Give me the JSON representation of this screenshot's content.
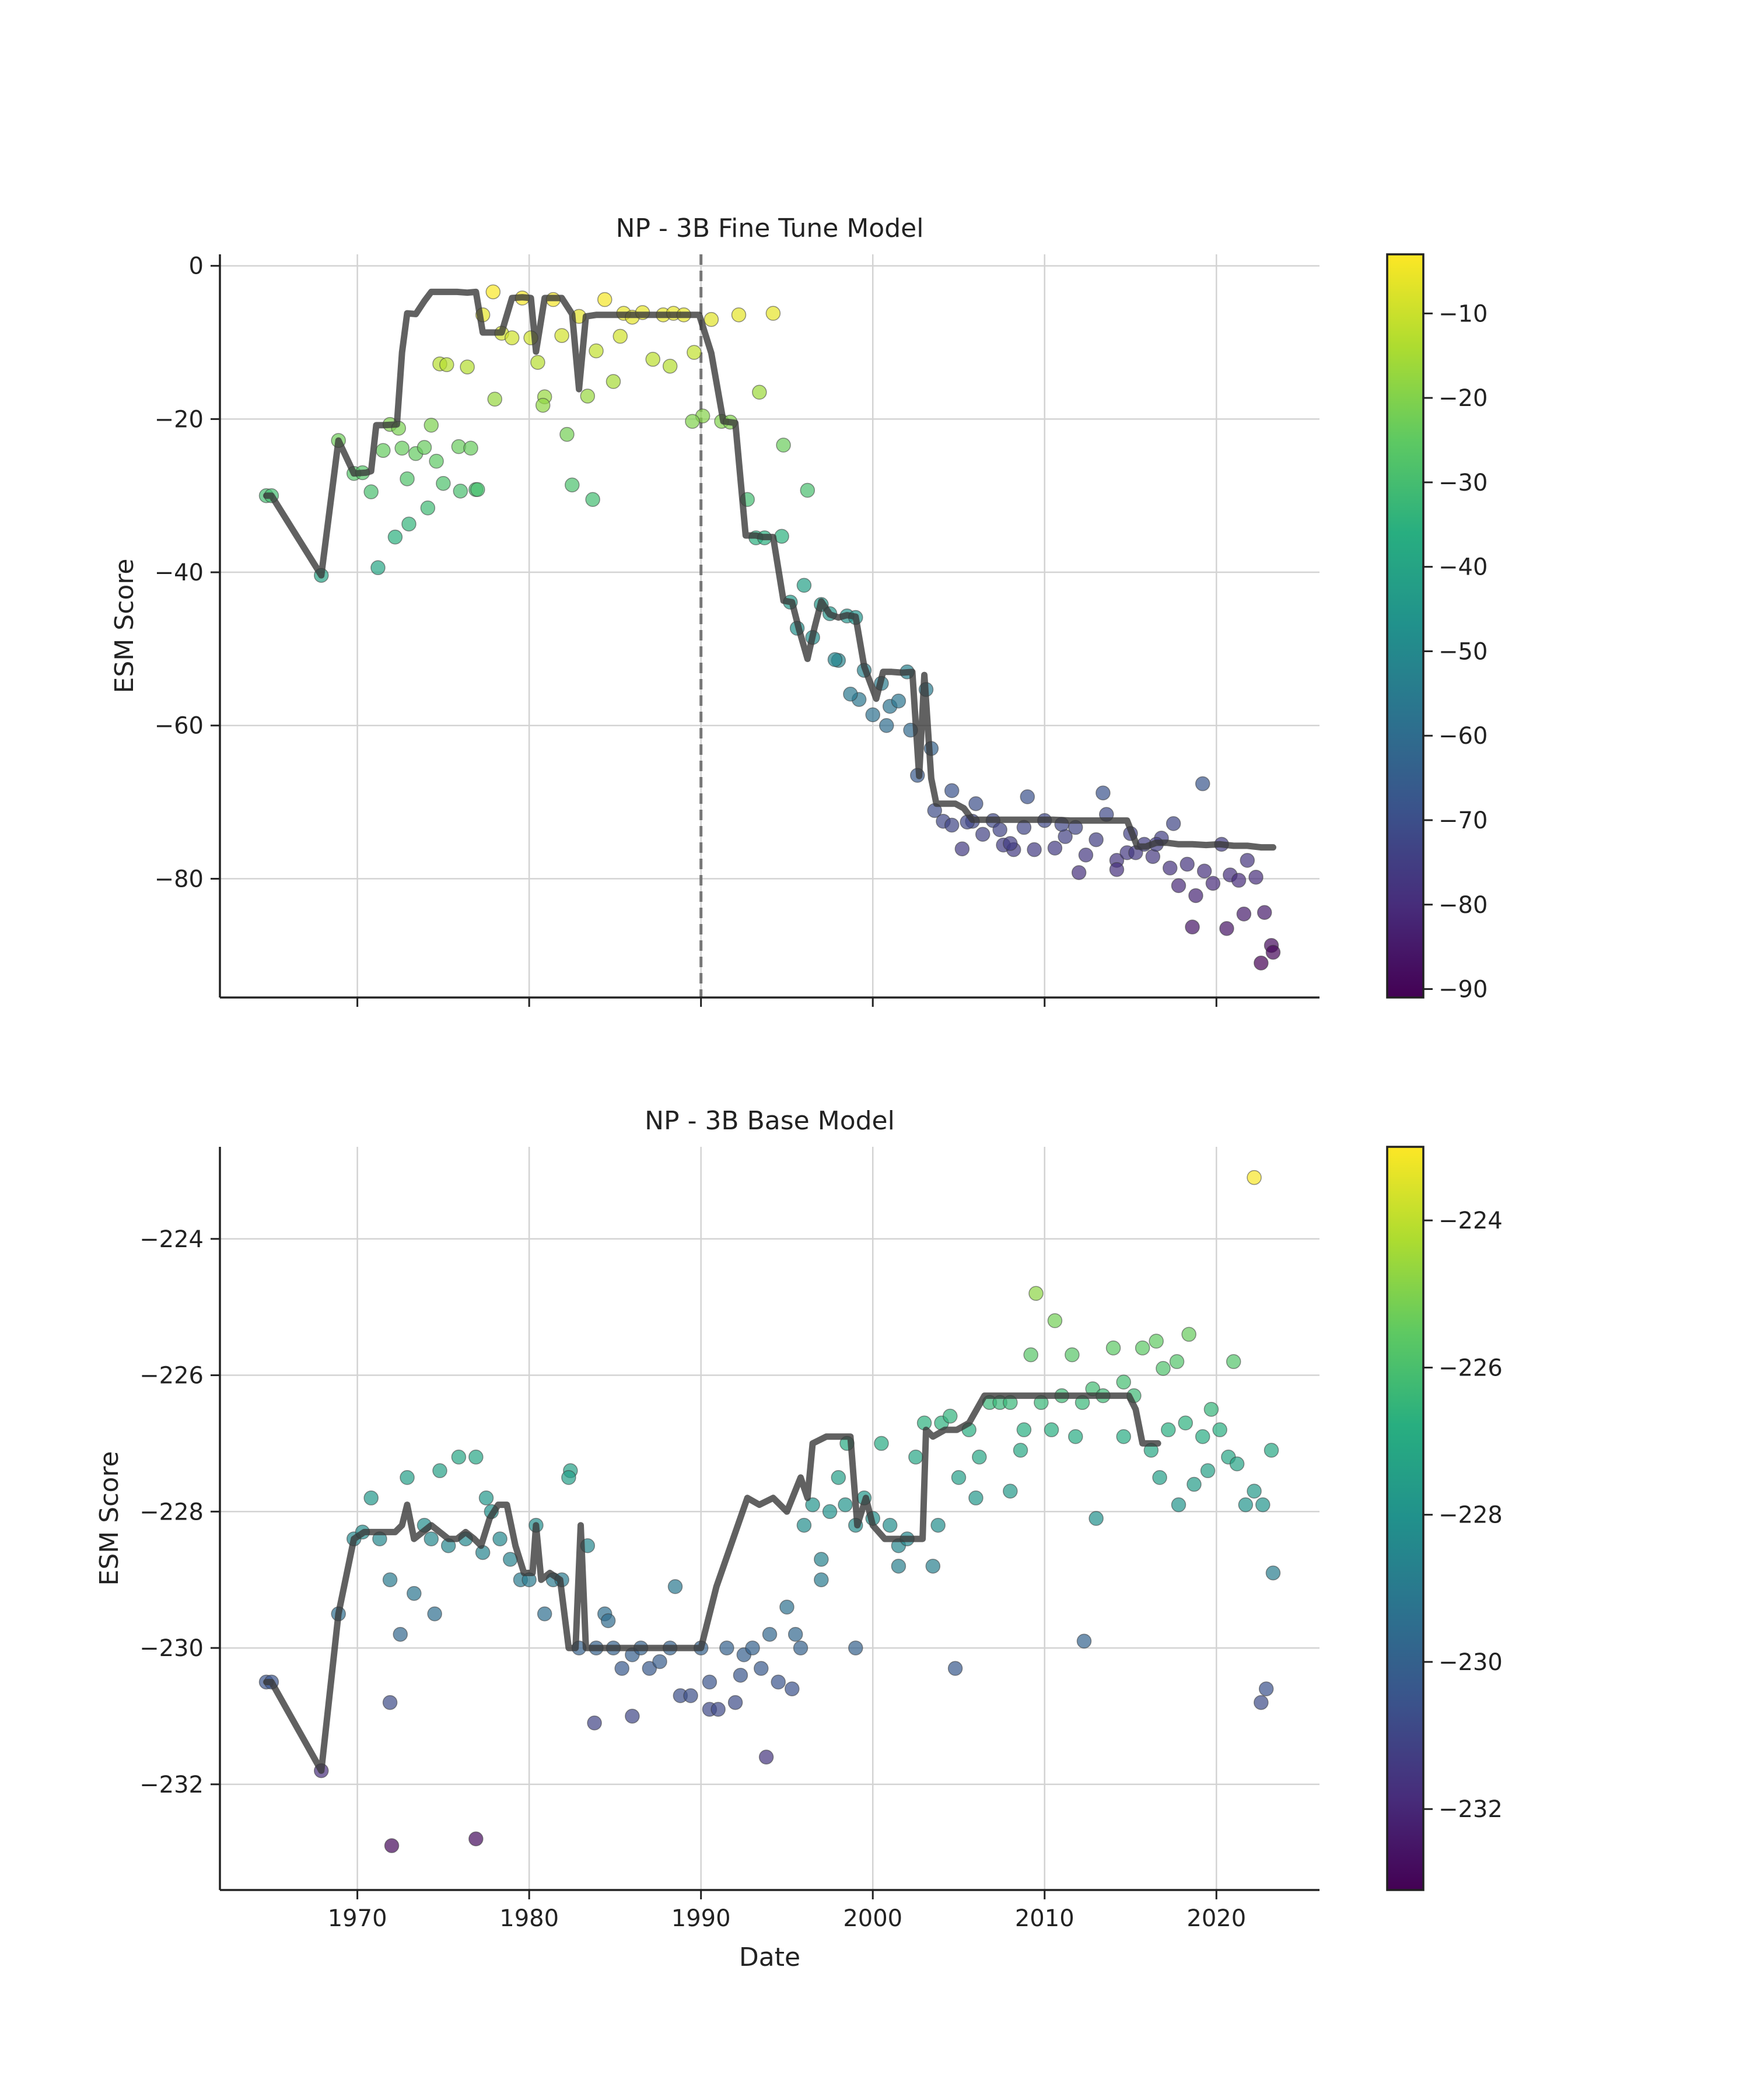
{
  "chart_data": [
    {
      "type": "scatter",
      "title": "NP - 3B Fine Tune Model",
      "xlabel": "",
      "ylabel": "ESM Score",
      "xlim": [
        1962,
        2026
      ],
      "ylim": [
        -95.5,
        1.5
      ],
      "xticks": [
        1970,
        1980,
        1990,
        2000,
        2010,
        2020
      ],
      "yticks": [
        0,
        -20,
        -40,
        -60,
        -80
      ],
      "show_xticklabels": false,
      "grid": true,
      "vline": {
        "x": 1990,
        "style": "dashed"
      },
      "colorbar": {
        "cmap": "viridis",
        "range": [
          -91,
          -3
        ],
        "ticks": [
          -10,
          -20,
          -30,
          -40,
          -50,
          -60,
          -70,
          -80,
          -90
        ]
      },
      "scatter_x": [
        1964.7,
        1965,
        1967.9,
        1968.9,
        1969.8,
        1970.3,
        1970.8,
        1971.5,
        1971.9,
        1972.6,
        1972.9,
        1973.4,
        1973.9,
        1974.3,
        1974.8,
        1975.2,
        1975.9,
        1976.4,
        1976.9,
        1977.3,
        1977.9,
        1978.4,
        1979,
        1979.6,
        1980.1,
        1980.5,
        1980.9,
        1981.4,
        1981.9,
        1982.5,
        1982.9,
        1983.4,
        1983.9,
        1984.4,
        1984.9,
        1985.5,
        1986,
        1986.6,
        1987.2,
        1987.8,
        1988.4,
        1989,
        1989.6,
        1990.1,
        1990.6,
        1991.2,
        1991.7,
        1992.2,
        1992.7,
        1993.2,
        1993.7,
        1994.2,
        1994.7,
        1995.2,
        1995.6,
        1996,
        1996.5,
        1997,
        1997.5,
        1998,
        1998.5,
        1999,
        1999.5,
        2000,
        2000.5,
        2001,
        2001.5,
        2002,
        2002.6,
        2003.1,
        2003.6,
        2004.1,
        2004.6,
        2005.2,
        2005.8,
        2006.4,
        2007,
        2007.6,
        2008.2,
        2008.8,
        2009.4,
        2010,
        2010.6,
        2011.2,
        2011.8,
        2012.4,
        2013,
        2013.6,
        2014.2,
        2014.8,
        2015.3,
        2015.8,
        2016.3,
        2016.8,
        2017.3,
        2017.8,
        2018.3,
        2018.8,
        2019.3,
        2019.8,
        2020.3,
        2020.8,
        2021.3,
        2021.8,
        2022.3,
        2022.8,
        2023.2,
        1971.2,
        1972.2,
        1973,
        1974.1,
        1975,
        1976,
        1977,
        1972.4,
        1974.6,
        1976.6,
        1978,
        1980.8,
        1982.2,
        1983.7,
        1985.3,
        1988.2,
        1989.5,
        1993.4,
        1994.8,
        1996.2,
        1997.8,
        1999.2,
        2000.8,
        2003.4,
        2004.6,
        2006,
        2007.4,
        2009,
        2011,
        2013.4,
        2015,
        2016.5,
        2017.5,
        2019.2,
        2020.6,
        2021.6,
        2022.6,
        2023.3,
        1998.7,
        2002.2,
        2005.5,
        2008,
        2012,
        2014.2,
        2018.6
      ],
      "scatter_y": [
        -30,
        -30,
        -40.4,
        -22.8,
        -27.1,
        -27,
        -29.5,
        -24.1,
        -20.7,
        -23.8,
        -27.8,
        -24.5,
        -23.7,
        -20.8,
        -12.8,
        -12.9,
        -23.6,
        -13.2,
        -29.2,
        -6.4,
        -3.4,
        -8.8,
        -9.4,
        -4.2,
        -9.4,
        -12.6,
        -17.1,
        -4.4,
        -9.1,
        -28.6,
        -6.6,
        -17,
        -11.1,
        -4.4,
        -15.1,
        -6.2,
        -6.7,
        -6.1,
        -12.2,
        -6.4,
        -6.2,
        -6.4,
        -11.3,
        -19.6,
        -7,
        -20.3,
        -20.4,
        -6.4,
        -30.5,
        -35.5,
        -35.5,
        -6.2,
        -35.3,
        -43.9,
        -47.3,
        -41.7,
        -48.5,
        -44.2,
        -45.4,
        -51.5,
        -45.7,
        -45.9,
        -52.8,
        -58.6,
        -54.5,
        -57.5,
        -56.8,
        -53,
        -66.5,
        -55.3,
        -71.1,
        -72.5,
        -73,
        -76.1,
        -72.5,
        -74.2,
        -72.4,
        -75.6,
        -76.2,
        -73.3,
        -76.2,
        -72.4,
        -76,
        -74.5,
        -73.3,
        -76.9,
        -74.9,
        -71.6,
        -77.6,
        -76.6,
        -76.6,
        -75.5,
        -77.1,
        -74.7,
        -78.6,
        -80.9,
        -78.1,
        -82.2,
        -79,
        -80.6,
        -75.5,
        -79.5,
        -80.2,
        -77.6,
        -79.8,
        -84.4,
        -88.7,
        -39.4,
        -35.4,
        -33.7,
        -31.6,
        -28.4,
        -29.4,
        -29.2,
        -21.2,
        -25.5,
        -23.8,
        -17.4,
        -18.2,
        -22,
        -30.5,
        -9.2,
        -13.1,
        -20.3,
        -16.5,
        -23.4,
        -29.3,
        -51.4,
        -56.6,
        -60,
        -63,
        -68.5,
        -70.2,
        -73.6,
        -69.3,
        -72.9,
        -68.8,
        -74.1,
        -75.5,
        -72.8,
        -67.6,
        -86.5,
        -84.6,
        -91,
        -89.6,
        -55.9,
        -60.6,
        -72.6,
        -75.4,
        -79.2,
        -78.8,
        -86.3
      ],
      "trend_x": [
        1964.7,
        1965,
        1967.9,
        1968.9,
        1969.8,
        1970.5,
        1970.8,
        1971.1,
        1971.5,
        1972.3,
        1972.6,
        1972.9,
        1973.4,
        1973.9,
        1974.3,
        1974.9,
        1975.8,
        1976.4,
        1976.9,
        1977.3,
        1977.8,
        1978.4,
        1979,
        1979.6,
        1980.1,
        1980.4,
        1980.9,
        1981.4,
        1981.9,
        1982.5,
        1982.9,
        1983.3,
        1983.9,
        1984.4,
        1985,
        1986,
        1987,
        1988,
        1989,
        1989.9,
        1990.6,
        1991.3,
        1992,
        1992.6,
        1993.2,
        1993.6,
        1994.2,
        1994.8,
        1995.3,
        1995.7,
        1996.2,
        1996.6,
        1997,
        1997.5,
        1998,
        1998.5,
        1999,
        1999.5,
        2000.2,
        2000.6,
        2001.1,
        2001.7,
        2002.3,
        2002.7,
        2003,
        2003.4,
        2003.7,
        2004.2,
        2004.8,
        2005.3,
        2005.8,
        2006.6,
        2007.3,
        2008.2,
        2009.4,
        2010.5,
        2011.5,
        2012.6,
        2013.8,
        2014.8,
        2015.4,
        2015.9,
        2016.5,
        2017.1,
        2017.8,
        2018.6,
        2019.4,
        2020.2,
        2021,
        2021.8,
        2022.6,
        2023.3
      ],
      "trend_y": [
        -30,
        -30,
        -40.4,
        -22.8,
        -27.1,
        -27,
        -26.8,
        -20.8,
        -20.8,
        -20.7,
        -11.3,
        -6.2,
        -6.3,
        -4.6,
        -3.4,
        -3.4,
        -3.4,
        -3.5,
        -3.4,
        -8.7,
        -8.7,
        -8.7,
        -4.2,
        -4.1,
        -4.2,
        -11.2,
        -4.2,
        -4.2,
        -4.2,
        -6.3,
        -16.1,
        -6.6,
        -6.4,
        -6.4,
        -6.4,
        -6.4,
        -6.4,
        -6.4,
        -6.4,
        -6.4,
        -11.4,
        -20.3,
        -20.5,
        -35.2,
        -35.2,
        -35.4,
        -35.4,
        -43.7,
        -43.9,
        -47.4,
        -51.3,
        -47.3,
        -43.8,
        -45.5,
        -45.9,
        -45.6,
        -45.8,
        -52.3,
        -56.5,
        -53,
        -53,
        -53.1,
        -53,
        -66.6,
        -53.4,
        -66.9,
        -70.2,
        -70.2,
        -70.2,
        -70.8,
        -72.3,
        -72.3,
        -72.3,
        -72.3,
        -72.3,
        -72.3,
        -72.4,
        -72.4,
        -72.4,
        -72.4,
        -75.8,
        -75.8,
        -75.3,
        -75.3,
        -75.5,
        -75.5,
        -75.6,
        -75.5,
        -75.7,
        -75.7,
        -75.9,
        -75.9
      ]
    },
    {
      "type": "scatter",
      "title": "NP - 3B Base Model",
      "xlabel": "Date",
      "ylabel": "ESM Score",
      "xlim": [
        1962,
        2026
      ],
      "ylim": [
        -233.55,
        -222.65
      ],
      "xticks": [
        1970,
        1980,
        1990,
        2000,
        2010,
        2020
      ],
      "yticks": [
        -224,
        -226,
        -228,
        -230,
        -232
      ],
      "show_xticklabels": true,
      "grid": true,
      "colorbar": {
        "cmap": "viridis",
        "range": [
          -233.1,
          -223
        ],
        "ticks": [
          -224,
          -226,
          -228,
          -230,
          -232
        ]
      },
      "scatter_x": [
        1964.7,
        1965,
        1967.9,
        1968.9,
        1969.8,
        1970.3,
        1970.8,
        1971.3,
        1971.9,
        1972.5,
        1972.9,
        1973.3,
        1973.9,
        1974.3,
        1974.8,
        1975.3,
        1975.9,
        1976.3,
        1976.9,
        1977.3,
        1977.8,
        1978.3,
        1978.9,
        1979.5,
        1980,
        1980.4,
        1980.9,
        1981.4,
        1981.9,
        1982.4,
        1982.9,
        1983.4,
        1983.9,
        1984.4,
        1984.9,
        1985.4,
        1986,
        1986.5,
        1987,
        1987.6,
        1988.2,
        1988.8,
        1989.4,
        1990,
        1990.5,
        1991,
        1991.5,
        1992,
        1992.5,
        1993,
        1993.5,
        1994,
        1994.5,
        1995,
        1995.5,
        1996,
        1996.5,
        1997,
        1997.5,
        1998,
        1998.5,
        1999,
        1999.5,
        2000,
        2000.5,
        2001,
        2001.5,
        2002,
        2002.5,
        2003,
        2003.5,
        2004,
        2004.5,
        2005,
        2005.6,
        2006.2,
        2006.8,
        2007.4,
        2008,
        2008.6,
        2009.2,
        2009.8,
        2010.4,
        2011,
        2011.6,
        2012.2,
        2012.8,
        2013.4,
        2014,
        2014.6,
        2015.2,
        2015.7,
        2016.2,
        2016.7,
        2017.2,
        2017.7,
        2018.2,
        2018.7,
        2019.2,
        2019.7,
        2020.2,
        2020.7,
        2021.2,
        2021.7,
        2022.2,
        2022.7,
        2023.2,
        1972,
        1976.9,
        1971.9,
        1974.5,
        1983.8,
        1986,
        1988.5,
        1990.5,
        1993.8,
        1995.3,
        1997,
        1999,
        2001.5,
        2004.8,
        2006,
        2008,
        2009.5,
        2010.6,
        2012.3,
        2013,
        2016.5,
        2017.8,
        2018.4,
        2019.5,
        2021,
        2022.2,
        2022.6,
        2022.9,
        2023.3,
        1977.5,
        1982.3,
        1984.6,
        1992.3,
        1995.8,
        1998.4,
        2003.8,
        2008.8,
        2011.8,
        2014.6,
        2016.9
      ],
      "scatter_y": [
        -230.5,
        -230.5,
        -231.8,
        -229.5,
        -228.4,
        -228.3,
        -227.8,
        -228.4,
        -229,
        -229.8,
        -227.5,
        -229.2,
        -228.2,
        -228.4,
        -227.4,
        -228.5,
        -227.2,
        -228.4,
        -227.2,
        -228.6,
        -228,
        -228.4,
        -228.7,
        -229,
        -229,
        -228.2,
        -229.5,
        -229,
        -229,
        -227.4,
        -230,
        -228.5,
        -230,
        -229.5,
        -230,
        -230.3,
        -230.1,
        -230,
        -230.3,
        -230.2,
        -230,
        -230.7,
        -230.7,
        -230,
        -230.9,
        -230.9,
        -230,
        -230.8,
        -230.1,
        -230,
        -230.3,
        -229.8,
        -230.5,
        -229.4,
        -229.8,
        -228.2,
        -227.9,
        -228.7,
        -228,
        -227.5,
        -227,
        -228.2,
        -227.8,
        -228.1,
        -227,
        -228.2,
        -228.5,
        -228.4,
        -227.2,
        -226.7,
        -228.8,
        -226.7,
        -226.6,
        -227.5,
        -226.8,
        -227.2,
        -226.4,
        -226.4,
        -226.4,
        -227.1,
        -225.7,
        -226.4,
        -226.8,
        -226.3,
        -225.7,
        -226.4,
        -226.2,
        -226.3,
        -225.6,
        -226.9,
        -226.3,
        -225.6,
        -227.1,
        -227.5,
        -226.8,
        -225.8,
        -226.7,
        -227.6,
        -226.9,
        -226.5,
        -226.8,
        -227.2,
        -227.3,
        -227.9,
        -227.7,
        -227.9,
        -227.1,
        -232.9,
        -232.8,
        -230.8,
        -229.5,
        -231.1,
        -231,
        -229.1,
        -230.5,
        -231.6,
        -230.6,
        -229,
        -230,
        -228.8,
        -230.3,
        -227.8,
        -227.7,
        -224.8,
        -225.2,
        -229.9,
        -228.1,
        -225.5,
        -227.9,
        -225.4,
        -227.4,
        -225.8,
        -223.1,
        -230.8,
        -230.6,
        -228.9,
        -227.8,
        -227.5,
        -229.6,
        -230.4,
        -230,
        -227.9,
        -228.2,
        -226.8,
        -226.9,
        -226.1,
        -225.9
      ],
      "trend_x": [
        1964.7,
        1965,
        1967.9,
        1968.9,
        1969.8,
        1970.4,
        1971,
        1971.6,
        1972.2,
        1972.6,
        1972.9,
        1973.3,
        1973.8,
        1974.3,
        1974.8,
        1975.3,
        1975.8,
        1976.3,
        1976.8,
        1977.2,
        1977.7,
        1978.2,
        1978.7,
        1979.2,
        1979.7,
        1980.2,
        1980.4,
        1980.7,
        1981.2,
        1981.8,
        1982.3,
        1982.7,
        1983,
        1983.3,
        1983.7,
        1984.2,
        1985,
        1986,
        1987,
        1988,
        1989,
        1990,
        1990.9,
        1992.7,
        1993.4,
        1994.2,
        1995,
        1995.8,
        1996.2,
        1996.5,
        1997.3,
        1998.2,
        1998.7,
        1999.1,
        1999.6,
        2000,
        2000.7,
        2001.5,
        2002.1,
        2002.5,
        2002.9,
        2003.1,
        2003.5,
        2004.2,
        2004.9,
        2005.6,
        2006.5,
        2008,
        2009.5,
        2011,
        2012.5,
        2013.9,
        2014.9,
        2015.3,
        2015.7,
        2016.6
      ],
      "trend_y": [
        -230.5,
        -230.5,
        -231.8,
        -229.5,
        -228.4,
        -228.3,
        -228.3,
        -228.3,
        -228.3,
        -228.2,
        -227.9,
        -228.4,
        -228.3,
        -228.2,
        -228.3,
        -228.4,
        -228.4,
        -228.3,
        -228.4,
        -228.5,
        -228.1,
        -227.9,
        -227.9,
        -228.5,
        -228.9,
        -228.9,
        -228.2,
        -229,
        -228.9,
        -229,
        -230,
        -230,
        -228.2,
        -230,
        -230,
        -230,
        -230,
        -230,
        -230,
        -230,
        -230,
        -230,
        -229.1,
        -227.8,
        -227.9,
        -227.8,
        -228,
        -227.5,
        -227.8,
        -227,
        -226.9,
        -226.9,
        -226.9,
        -228.2,
        -227.8,
        -228.2,
        -228.4,
        -228.4,
        -228.4,
        -228.4,
        -228.4,
        -226.8,
        -226.9,
        -226.8,
        -226.8,
        -226.7,
        -226.3,
        -226.3,
        -226.3,
        -226.3,
        -226.3,
        -226.3,
        -226.3,
        -226.5,
        -227,
        -227
      ]
    }
  ]
}
